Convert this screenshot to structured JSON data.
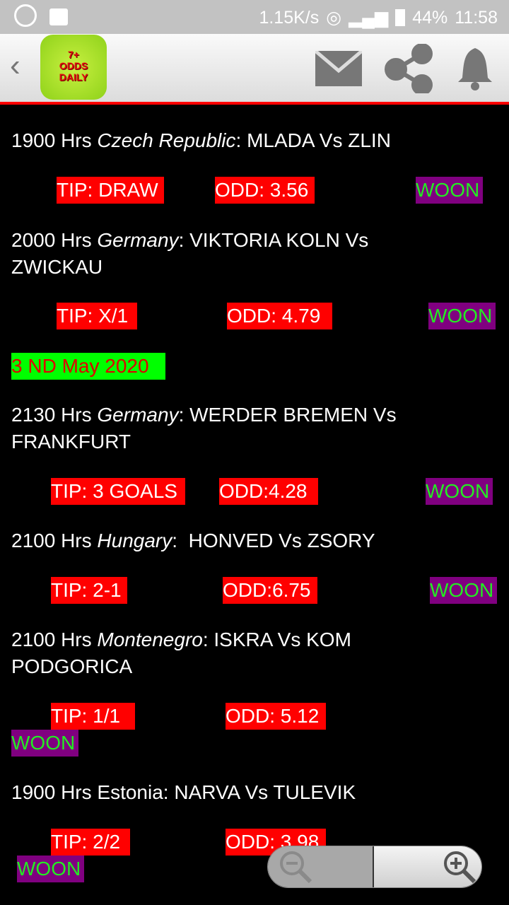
{
  "status_bar": {
    "speed": "1.15K/s",
    "battery": "44%",
    "time": "11:58"
  },
  "app_bar": {
    "logo_text": [
      "7+",
      "ODDS",
      "DAILY"
    ]
  },
  "matches": [
    {
      "time": "1900 Hrs ",
      "country": "Czech Republic",
      "sep": ": ",
      "teams": "MLADA Vs ZLIN",
      "tip": "TIP: DRAW",
      "odd": "ODD: 3.56",
      "result": "WOON"
    },
    {
      "time": "2000 Hrs ",
      "country": "Germany",
      "sep": ": ",
      "teams": "VIKTORIA KOLN Vs",
      "teams2": "ZWICKAU",
      "tip": "TIP: X/1",
      "odd": "ODD: 4.79",
      "result": "WOON"
    },
    {
      "time": "2130 Hrs ",
      "country": "Germany",
      "sep": ": ",
      "teams": "WERDER BREMEN Vs",
      "teams2": "FRANKFURT",
      "tip": "TIP: 3 GOALS",
      "odd": "ODD:4.28",
      "result": "WOON"
    },
    {
      "time": "2100 Hrs ",
      "country": "Hungary",
      "sep": ":  ",
      "teams": "HONVED Vs ZSORY",
      "tip": "TIP: 2-1",
      "odd": "ODD:6.75",
      "result": "WOON"
    },
    {
      "time": "2100 Hrs ",
      "country": "Montenegro",
      "sep": ": ",
      "teams": "ISKRA Vs KOM",
      "teams2": "PODGORICA",
      "tip": "TIP: 1/1",
      "odd": "ODD: 5.12",
      "result": "WOON"
    },
    {
      "line": "1900 Hrs Estonia: NARVA Vs TULEVIK",
      "tip": "TIP: 2/2",
      "odd": "ODD: 3.98",
      "result": "WOON"
    }
  ],
  "date_header": "3 ND May 2020"
}
